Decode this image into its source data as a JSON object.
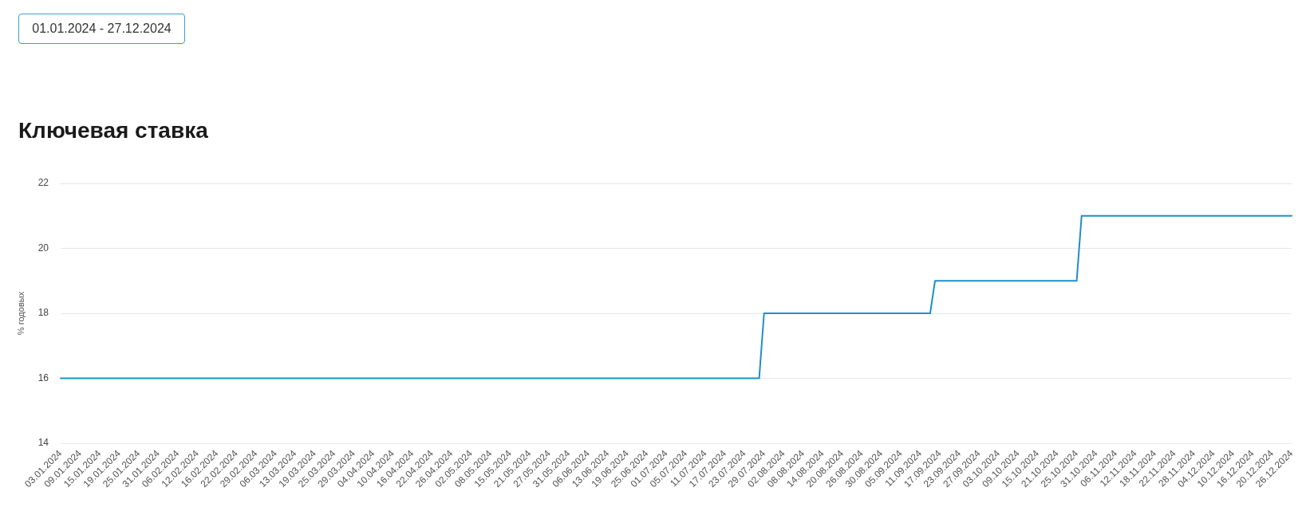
{
  "chart_data": {
    "type": "line",
    "title": "Ключевая ставка",
    "ylabel": "% годовых",
    "annotations": [
      "01.01.2024 - 27.12.2024"
    ],
    "categories": [
      "03.01.2024",
      null,
      null,
      null,
      "09.01.2024",
      null,
      null,
      null,
      "15.01.2024",
      null,
      null,
      null,
      "19.01.2024",
      null,
      null,
      null,
      "25.01.2024",
      null,
      null,
      null,
      "31.01.2024",
      null,
      null,
      null,
      "06.02.2024",
      null,
      null,
      null,
      "12.02.2024",
      null,
      null,
      null,
      "16.02.2024",
      null,
      null,
      null,
      "22.02.2024",
      null,
      null,
      null,
      "29.02.2024",
      null,
      null,
      null,
      "06.03.2024",
      null,
      null,
      null,
      "13.03.2024",
      null,
      null,
      null,
      "19.03.2024",
      null,
      null,
      null,
      "25.03.2024",
      null,
      null,
      null,
      "29.03.2024",
      null,
      null,
      null,
      "04.04.2024",
      null,
      null,
      null,
      "10.04.2024",
      null,
      null,
      null,
      "16.04.2024",
      null,
      null,
      null,
      "22.04.2024",
      null,
      null,
      null,
      "26.04.2024",
      null,
      null,
      null,
      "02.05.2024",
      null,
      null,
      null,
      "08.05.2024",
      null,
      null,
      null,
      "15.05.2024",
      null,
      null,
      null,
      "21.05.2024",
      null,
      null,
      null,
      "27.05.2024",
      null,
      null,
      null,
      "31.05.2024",
      null,
      null,
      null,
      "06.06.2024",
      null,
      null,
      null,
      "13.06.2024",
      null,
      null,
      null,
      "19.06.2024",
      null,
      null,
      null,
      "25.06.2024",
      null,
      null,
      null,
      "01.07.2024",
      null,
      null,
      null,
      "05.07.2024",
      null,
      null,
      null,
      "11.07.2024",
      null,
      null,
      null,
      "17.07.2024",
      null,
      null,
      null,
      "23.07.2024",
      null,
      null,
      null,
      "29.07.2024",
      null,
      null,
      null,
      "02.08.2024",
      null,
      null,
      null,
      "08.08.2024",
      null,
      null,
      null,
      "14.08.2024",
      null,
      null,
      null,
      "20.08.2024",
      null,
      null,
      null,
      "26.08.2024",
      null,
      null,
      null,
      "30.08.2024",
      null,
      null,
      null,
      "05.09.2024",
      null,
      null,
      null,
      "11.09.2024",
      null,
      null,
      null,
      "17.09.2024",
      null,
      null,
      null,
      "23.09.2024",
      null,
      null,
      null,
      "27.09.2024",
      null,
      null,
      null,
      "03.10.2024",
      null,
      null,
      null,
      "09.10.2024",
      null,
      null,
      null,
      "15.10.2024",
      null,
      null,
      null,
      "21.10.2024",
      null,
      null,
      null,
      "25.10.2024",
      null,
      null,
      null,
      "31.10.2024",
      null,
      null,
      null,
      "06.11.2024",
      null,
      null,
      null,
      "12.11.2024",
      null,
      null,
      null,
      "18.11.2024",
      null,
      null,
      null,
      "22.11.2024",
      null,
      null,
      null,
      "28.11.2024",
      null,
      null,
      null,
      "04.12.2024",
      null,
      null,
      null,
      "10.12.2024",
      null,
      null,
      null,
      "16.12.2024",
      null,
      null,
      null,
      "20.12.2024",
      null,
      null,
      null,
      "26.12.2024"
    ],
    "values": [
      16,
      16,
      16,
      16,
      16,
      16,
      16,
      16,
      16,
      16,
      16,
      16,
      16,
      16,
      16,
      16,
      16,
      16,
      16,
      16,
      16,
      16,
      16,
      16,
      16,
      16,
      16,
      16,
      16,
      16,
      16,
      16,
      16,
      16,
      16,
      16,
      16,
      16,
      16,
      16,
      16,
      16,
      16,
      16,
      16,
      16,
      16,
      16,
      16,
      16,
      16,
      16,
      16,
      16,
      16,
      16,
      16,
      16,
      16,
      16,
      16,
      16,
      16,
      16,
      16,
      16,
      16,
      16,
      16,
      16,
      16,
      16,
      16,
      16,
      16,
      16,
      16,
      16,
      16,
      16,
      16,
      16,
      16,
      16,
      16,
      16,
      16,
      16,
      16,
      16,
      16,
      16,
      16,
      16,
      16,
      16,
      16,
      16,
      16,
      16,
      16,
      16,
      16,
      16,
      16,
      16,
      16,
      16,
      16,
      16,
      16,
      16,
      16,
      16,
      16,
      16,
      16,
      16,
      16,
      16,
      16,
      16,
      16,
      16,
      16,
      16,
      16,
      16,
      16,
      16,
      16,
      16,
      16,
      16,
      16,
      16,
      16,
      16,
      16,
      16,
      16,
      16,
      16,
      16,
      18,
      18,
      18,
      18,
      18,
      18,
      18,
      18,
      18,
      18,
      18,
      18,
      18,
      18,
      18,
      18,
      18,
      18,
      18,
      18,
      18,
      18,
      18,
      18,
      18,
      18,
      18,
      18,
      18,
      18,
      18,
      18,
      18,
      18,
      18,
      19,
      19,
      19,
      19,
      19,
      19,
      19,
      19,
      19,
      19,
      19,
      19,
      19,
      19,
      19,
      19,
      19,
      19,
      19,
      19,
      19,
      19,
      19,
      19,
      19,
      19,
      19,
      19,
      19,
      19,
      21,
      21,
      21,
      21,
      21,
      21,
      21,
      21,
      21,
      21,
      21,
      21,
      21,
      21,
      21,
      21,
      21,
      21,
      21,
      21,
      21,
      21,
      21,
      21,
      21,
      21,
      21,
      21,
      21,
      21,
      21,
      21,
      21,
      21,
      21,
      21,
      21,
      21,
      21,
      21,
      21,
      21,
      21,
      21
    ],
    "color": "#1e8fc8",
    "ylim": [
      14,
      22
    ],
    "yticks": [
      14,
      16,
      18,
      20,
      22
    ],
    "grid": "y",
    "marker": "none"
  }
}
